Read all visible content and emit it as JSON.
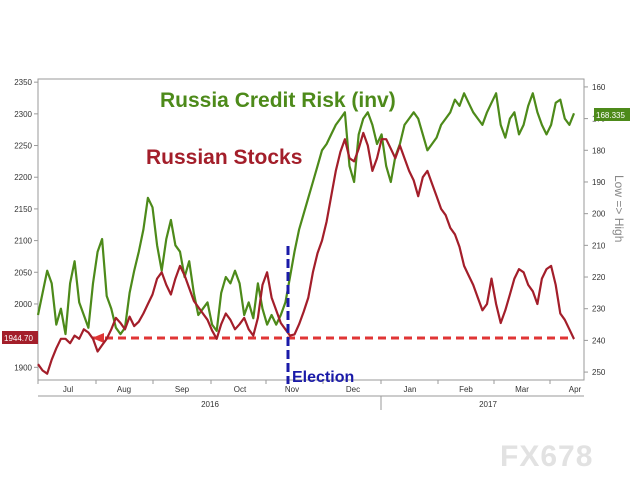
{
  "chart_data": {
    "type": "line",
    "title": "Russia Credit Risk (inv)",
    "subtitle": "Russian Stocks",
    "annotation": "Election",
    "right_axis_label": "Low => High",
    "watermark": "FX678",
    "months": [
      "Jul",
      "Aug",
      "Sep",
      "Oct",
      "Nov",
      "Dec",
      "Jan",
      "Feb",
      "Mar",
      "Apr"
    ],
    "years": [
      "2016",
      "2017"
    ],
    "left_axis": {
      "ticks": [
        1900,
        1950,
        2000,
        2050,
        2100,
        2150,
        2200,
        2250,
        2300,
        2350
      ],
      "ylim": [
        1880,
        2355
      ]
    },
    "right_axis": {
      "ticks": [
        160,
        170,
        180,
        190,
        200,
        210,
        220,
        230,
        240,
        250
      ],
      "ylim": [
        157.5,
        252.5
      ],
      "inverted": true
    },
    "last_labels": {
      "stocks": "1944.70",
      "credit": "168.335"
    },
    "colors": {
      "stocks": "#a31e2a",
      "credit": "#4d8a1a",
      "election": "#1a1aa8",
      "support": "#e03535"
    },
    "series": [
      {
        "name": "Russian Stocks",
        "axis": "left",
        "values": [
          1905,
          1895,
          1890,
          1912,
          1930,
          1945,
          1945,
          1938,
          1950,
          1945,
          1960,
          1955,
          1945,
          1925,
          1935,
          1945,
          1960,
          1978,
          1970,
          1960,
          1980,
          1965,
          1972,
          1985,
          2000,
          2015,
          2040,
          2050,
          2030,
          2015,
          2040,
          2060,
          2045,
          2025,
          2005,
          1995,
          1985,
          1975,
          1958,
          1945,
          1968,
          1985,
          1975,
          1960,
          1968,
          1978,
          1960,
          1950,
          1978,
          2030,
          2050,
          2010,
          1990,
          1970,
          1960,
          1950,
          1952,
          1968,
          1988,
          2010,
          2050,
          2080,
          2100,
          2130,
          2170,
          2210,
          2240,
          2260,
          2230,
          2225,
          2245,
          2270,
          2250,
          2210,
          2230,
          2260,
          2260,
          2245,
          2230,
          2250,
          2230,
          2210,
          2195,
          2170,
          2200,
          2210,
          2190,
          2170,
          2150,
          2140,
          2120,
          2110,
          2090,
          2060,
          2045,
          2030,
          2010,
          1990,
          2000,
          2040,
          2000,
          1970,
          1990,
          2015,
          2040,
          2055,
          2050,
          2030,
          2020,
          2000,
          2040,
          2055,
          2060,
          2030,
          1985,
          1975,
          1960,
          1944.7
        ]
      },
      {
        "name": "Russia Credit Risk (inv)",
        "axis": "right",
        "values": [
          232,
          225,
          218,
          222,
          235,
          230,
          238,
          222,
          215,
          228,
          232,
          236,
          222,
          212,
          208,
          226,
          230,
          236,
          238,
          236,
          225,
          218,
          212,
          205,
          195,
          198,
          210,
          218,
          208,
          202,
          210,
          212,
          220,
          215,
          225,
          232,
          230,
          228,
          235,
          237,
          225,
          220,
          222,
          218,
          222,
          232,
          228,
          233,
          222,
          230,
          235,
          232,
          235,
          232,
          228,
          220,
          212,
          205,
          200,
          195,
          190,
          185,
          180,
          178,
          175,
          172,
          170,
          168,
          185,
          190,
          175,
          170,
          168,
          172,
          178,
          175,
          185,
          190,
          182,
          178,
          172,
          170,
          168,
          170,
          175,
          180,
          178,
          176,
          172,
          170,
          168,
          164,
          166,
          162,
          165,
          168,
          170,
          172,
          168,
          165,
          162,
          172,
          176,
          170,
          168,
          175,
          172,
          166,
          162,
          168,
          172,
          175,
          172,
          165,
          164,
          170,
          172,
          168.335
        ]
      }
    ]
  }
}
